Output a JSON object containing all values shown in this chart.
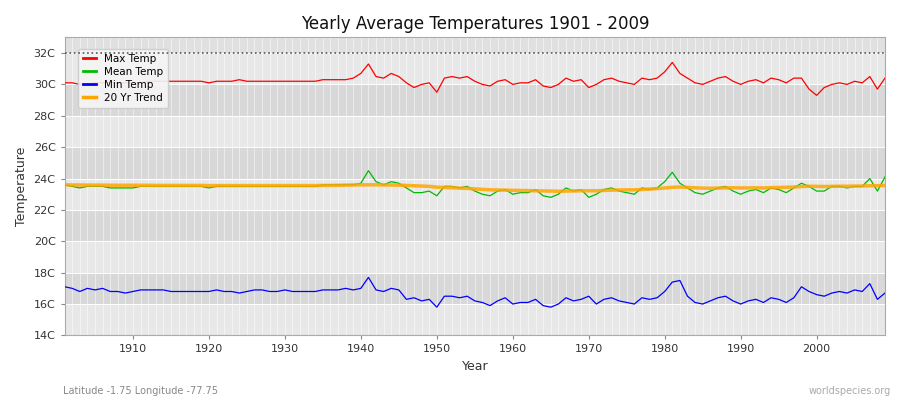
{
  "title": "Yearly Average Temperatures 1901 - 2009",
  "xlabel": "Year",
  "ylabel": "Temperature",
  "xlim": [
    1901,
    2009
  ],
  "ylim": [
    14,
    33
  ],
  "yticks": [
    14,
    16,
    18,
    20,
    22,
    24,
    26,
    28,
    30,
    32
  ],
  "ytick_labels": [
    "14C",
    "16C",
    "18C",
    "20C",
    "22C",
    "24C",
    "26C",
    "28C",
    "30C",
    "32C"
  ],
  "xticks": [
    1910,
    1920,
    1930,
    1940,
    1950,
    1960,
    1970,
    1980,
    1990,
    2000
  ],
  "background_color": "#e0e0e0",
  "band_color_light": "#e8e8e8",
  "band_color_dark": "#d8d8d8",
  "grid_color": "#ffffff",
  "max_temp_color": "#ff0000",
  "mean_temp_color": "#00bb00",
  "min_temp_color": "#0000ff",
  "trend_color": "#ffa500",
  "dotted_line_y": 32,
  "footnote_left": "Latitude -1.75 Longitude -77.75",
  "footnote_right": "worldspecies.org",
  "fig_bg": "#ffffff",
  "years": [
    1901,
    1902,
    1903,
    1904,
    1905,
    1906,
    1907,
    1908,
    1909,
    1910,
    1911,
    1912,
    1913,
    1914,
    1915,
    1916,
    1917,
    1918,
    1919,
    1920,
    1921,
    1922,
    1923,
    1924,
    1925,
    1926,
    1927,
    1928,
    1929,
    1930,
    1931,
    1932,
    1933,
    1934,
    1935,
    1936,
    1937,
    1938,
    1939,
    1940,
    1941,
    1942,
    1943,
    1944,
    1945,
    1946,
    1947,
    1948,
    1949,
    1950,
    1951,
    1952,
    1953,
    1954,
    1955,
    1956,
    1957,
    1958,
    1959,
    1960,
    1961,
    1962,
    1963,
    1964,
    1965,
    1966,
    1967,
    1968,
    1969,
    1970,
    1971,
    1972,
    1973,
    1974,
    1975,
    1976,
    1977,
    1978,
    1979,
    1980,
    1981,
    1982,
    1983,
    1984,
    1985,
    1986,
    1987,
    1988,
    1989,
    1990,
    1991,
    1992,
    1993,
    1994,
    1995,
    1996,
    1997,
    1998,
    1999,
    2000,
    2001,
    2002,
    2003,
    2004,
    2005,
    2006,
    2007,
    2008,
    2009
  ],
  "max_temp": [
    30.1,
    30.1,
    30.0,
    30.0,
    30.1,
    30.1,
    30.1,
    30.1,
    30.1,
    30.1,
    30.1,
    30.2,
    30.2,
    30.2,
    30.2,
    30.2,
    30.2,
    30.2,
    30.2,
    30.1,
    30.2,
    30.2,
    30.2,
    30.3,
    30.2,
    30.2,
    30.2,
    30.2,
    30.2,
    30.2,
    30.2,
    30.2,
    30.2,
    30.2,
    30.3,
    30.3,
    30.3,
    30.3,
    30.4,
    30.7,
    31.3,
    30.5,
    30.4,
    30.7,
    30.5,
    30.1,
    29.8,
    30.0,
    30.1,
    29.5,
    30.4,
    30.5,
    30.4,
    30.5,
    30.2,
    30.0,
    29.9,
    30.2,
    30.3,
    30.0,
    30.1,
    30.1,
    30.3,
    29.9,
    29.8,
    30.0,
    30.4,
    30.2,
    30.3,
    29.8,
    30.0,
    30.3,
    30.4,
    30.2,
    30.1,
    30.0,
    30.4,
    30.3,
    30.4,
    30.8,
    31.4,
    30.7,
    30.4,
    30.1,
    30.0,
    30.2,
    30.4,
    30.5,
    30.2,
    30.0,
    30.2,
    30.3,
    30.1,
    30.4,
    30.3,
    30.1,
    30.4,
    30.4,
    29.7,
    29.3,
    29.8,
    30.0,
    30.1,
    30.0,
    30.2,
    30.1,
    30.5,
    29.7,
    30.4
  ],
  "mean_temp": [
    23.6,
    23.5,
    23.4,
    23.5,
    23.5,
    23.5,
    23.4,
    23.4,
    23.4,
    23.4,
    23.5,
    23.5,
    23.5,
    23.5,
    23.5,
    23.5,
    23.5,
    23.5,
    23.5,
    23.4,
    23.5,
    23.5,
    23.5,
    23.5,
    23.5,
    23.5,
    23.5,
    23.5,
    23.5,
    23.5,
    23.5,
    23.5,
    23.5,
    23.5,
    23.6,
    23.6,
    23.6,
    23.6,
    23.6,
    23.7,
    24.5,
    23.8,
    23.6,
    23.8,
    23.7,
    23.4,
    23.1,
    23.1,
    23.2,
    22.9,
    23.5,
    23.5,
    23.4,
    23.5,
    23.2,
    23.0,
    22.9,
    23.2,
    23.3,
    23.0,
    23.1,
    23.1,
    23.3,
    22.9,
    22.8,
    23.0,
    23.4,
    23.2,
    23.3,
    22.8,
    23.0,
    23.3,
    23.4,
    23.2,
    23.1,
    23.0,
    23.4,
    23.3,
    23.4,
    23.8,
    24.4,
    23.7,
    23.4,
    23.1,
    23.0,
    23.2,
    23.4,
    23.5,
    23.2,
    23.0,
    23.2,
    23.3,
    23.1,
    23.4,
    23.3,
    23.1,
    23.4,
    23.7,
    23.5,
    23.2,
    23.2,
    23.5,
    23.5,
    23.4,
    23.5,
    23.5,
    24.0,
    23.2,
    24.1
  ],
  "min_temp": [
    17.1,
    17.0,
    16.8,
    17.0,
    16.9,
    17.0,
    16.8,
    16.8,
    16.7,
    16.8,
    16.9,
    16.9,
    16.9,
    16.9,
    16.8,
    16.8,
    16.8,
    16.8,
    16.8,
    16.8,
    16.9,
    16.8,
    16.8,
    16.7,
    16.8,
    16.9,
    16.9,
    16.8,
    16.8,
    16.9,
    16.8,
    16.8,
    16.8,
    16.8,
    16.9,
    16.9,
    16.9,
    17.0,
    16.9,
    17.0,
    17.7,
    16.9,
    16.8,
    17.0,
    16.9,
    16.3,
    16.4,
    16.2,
    16.3,
    15.8,
    16.5,
    16.5,
    16.4,
    16.5,
    16.2,
    16.1,
    15.9,
    16.2,
    16.4,
    16.0,
    16.1,
    16.1,
    16.3,
    15.9,
    15.8,
    16.0,
    16.4,
    16.2,
    16.3,
    16.5,
    16.0,
    16.3,
    16.4,
    16.2,
    16.1,
    16.0,
    16.4,
    16.3,
    16.4,
    16.8,
    17.4,
    17.5,
    16.5,
    16.1,
    16.0,
    16.2,
    16.4,
    16.5,
    16.2,
    16.0,
    16.2,
    16.3,
    16.1,
    16.4,
    16.3,
    16.1,
    16.4,
    17.1,
    16.8,
    16.6,
    16.5,
    16.7,
    16.8,
    16.7,
    16.9,
    16.8,
    17.3,
    16.3,
    16.7
  ],
  "trend": [
    23.6,
    23.59,
    23.59,
    23.58,
    23.58,
    23.58,
    23.57,
    23.57,
    23.57,
    23.57,
    23.57,
    23.57,
    23.56,
    23.56,
    23.56,
    23.56,
    23.56,
    23.56,
    23.56,
    23.55,
    23.55,
    23.55,
    23.55,
    23.55,
    23.55,
    23.55,
    23.55,
    23.55,
    23.55,
    23.55,
    23.55,
    23.55,
    23.55,
    23.55,
    23.56,
    23.56,
    23.57,
    23.58,
    23.59,
    23.6,
    23.6,
    23.6,
    23.59,
    23.59,
    23.58,
    23.56,
    23.54,
    23.52,
    23.5,
    23.45,
    23.43,
    23.41,
    23.39,
    23.37,
    23.34,
    23.31,
    23.28,
    23.27,
    23.26,
    23.25,
    23.24,
    23.23,
    23.22,
    23.21,
    23.2,
    23.19,
    23.2,
    23.21,
    23.22,
    23.22,
    23.22,
    23.24,
    23.26,
    23.27,
    23.28,
    23.28,
    23.3,
    23.33,
    23.36,
    23.4,
    23.44,
    23.46,
    23.44,
    23.41,
    23.39,
    23.38,
    23.39,
    23.4,
    23.41,
    23.4,
    23.4,
    23.41,
    23.4,
    23.42,
    23.43,
    23.44,
    23.46,
    23.49,
    23.51,
    23.5,
    23.49,
    23.5,
    23.51,
    23.51,
    23.52,
    23.52,
    23.54,
    23.54,
    23.56
  ]
}
